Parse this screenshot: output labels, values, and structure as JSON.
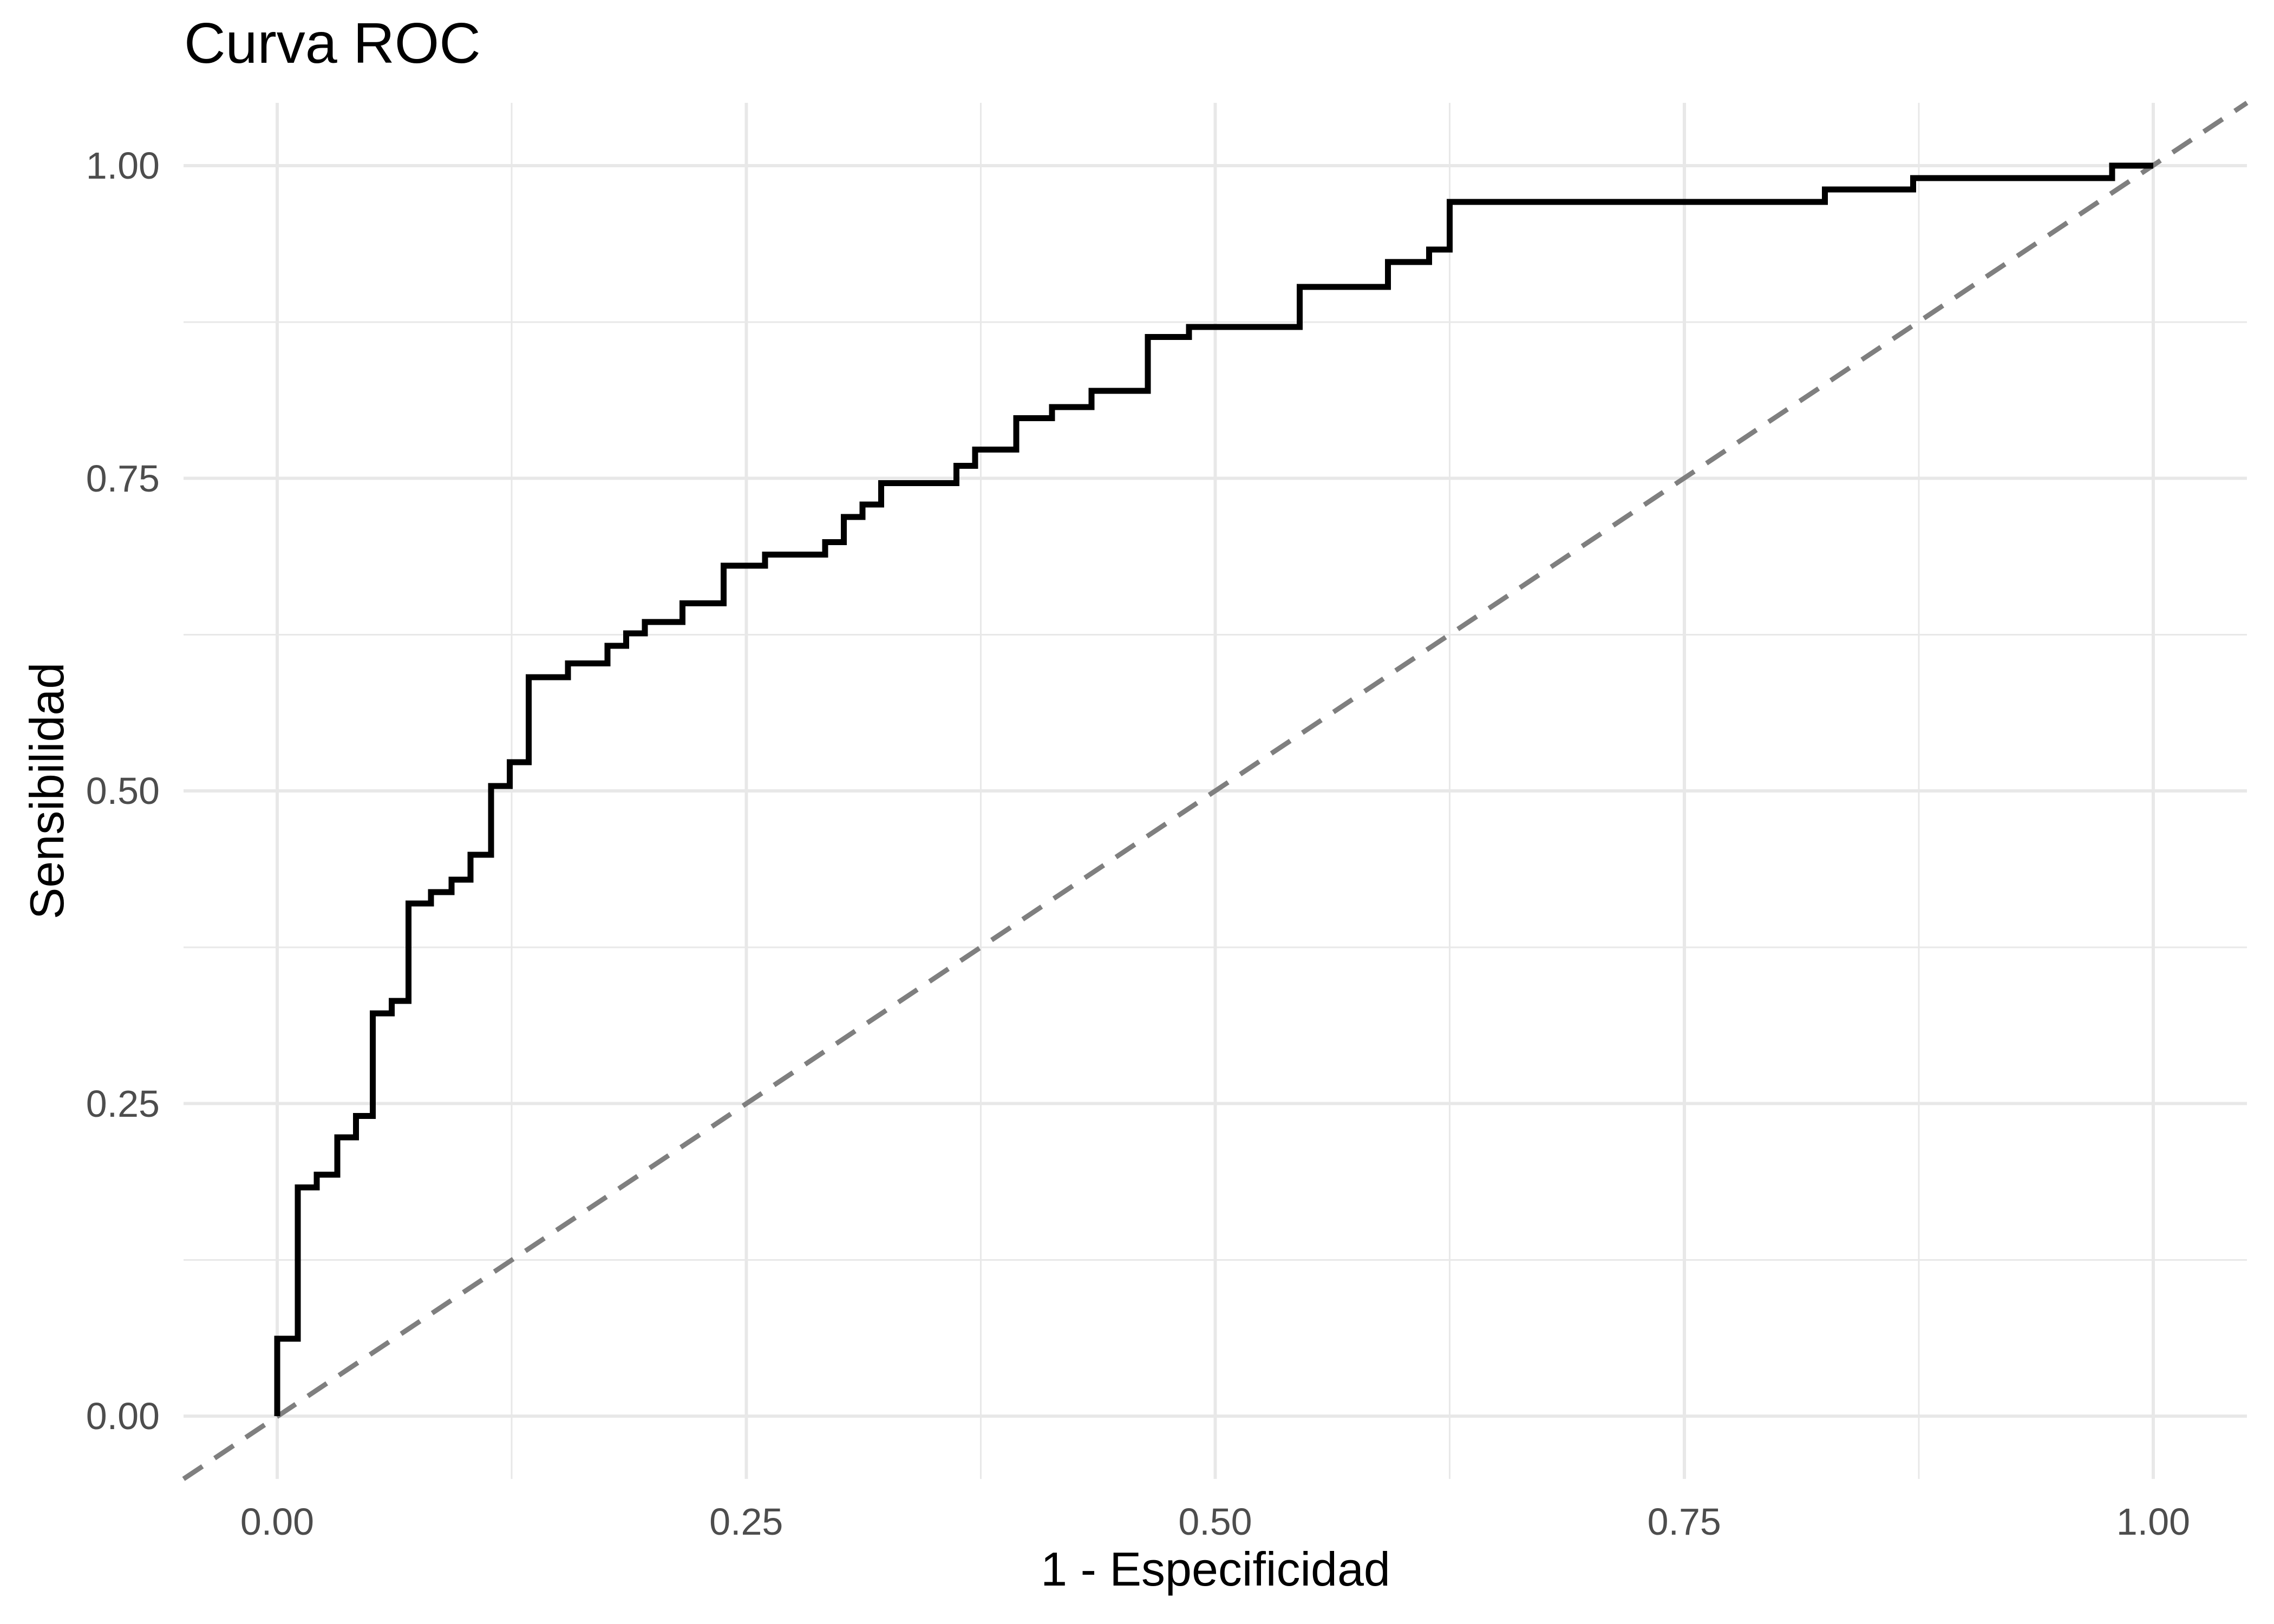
{
  "title": "Curva ROC",
  "axes": {
    "x": {
      "label": "1 - Especificidad",
      "tick_labels": [
        "0.00",
        "0.25",
        "0.50",
        "0.75",
        "1.00"
      ],
      "tick_values": [
        0,
        0.25,
        0.5,
        0.75,
        1
      ]
    },
    "y": {
      "label": "Sensibilidad",
      "tick_labels": [
        "0.00",
        "0.25",
        "0.50",
        "0.75",
        "1.00"
      ],
      "tick_values": [
        0,
        0.25,
        0.5,
        0.75,
        1
      ]
    }
  },
  "colors": {
    "background": "#ffffff",
    "roc_curve": "#000000",
    "reference_line": "#7f7f7f",
    "gridline": "#e8e8e8",
    "tick_text": "#4d4d4d",
    "title_text": "#000000"
  },
  "chart_data": {
    "type": "line",
    "subtype": "roc-step",
    "title": "Curva ROC",
    "xlabel": "1 - Especificidad",
    "ylabel": "Sensibilidad",
    "xlim": [
      0,
      1
    ],
    "ylim": [
      0,
      1
    ],
    "grid": {
      "major": [
        0,
        0.25,
        0.5,
        0.75,
        1
      ],
      "minor": [
        0.125,
        0.375,
        0.625,
        0.875
      ]
    },
    "legend": "none",
    "series": [
      {
        "name": "Curva ROC",
        "style": "step-solid",
        "color": "#000000",
        "points": [
          [
            0.0,
            0.0
          ],
          [
            0.0,
            0.062
          ],
          [
            0.011,
            0.062
          ],
          [
            0.011,
            0.183
          ],
          [
            0.021,
            0.183
          ],
          [
            0.021,
            0.193
          ],
          [
            0.032,
            0.193
          ],
          [
            0.032,
            0.223
          ],
          [
            0.042,
            0.223
          ],
          [
            0.042,
            0.24
          ],
          [
            0.051,
            0.24
          ],
          [
            0.051,
            0.322
          ],
          [
            0.061,
            0.322
          ],
          [
            0.061,
            0.332
          ],
          [
            0.07,
            0.332
          ],
          [
            0.07,
            0.41
          ],
          [
            0.082,
            0.41
          ],
          [
            0.082,
            0.419
          ],
          [
            0.093,
            0.419
          ],
          [
            0.093,
            0.429
          ],
          [
            0.103,
            0.429
          ],
          [
            0.103,
            0.449
          ],
          [
            0.114,
            0.449
          ],
          [
            0.114,
            0.504
          ],
          [
            0.124,
            0.504
          ],
          [
            0.124,
            0.523
          ],
          [
            0.134,
            0.523
          ],
          [
            0.134,
            0.591
          ],
          [
            0.155,
            0.591
          ],
          [
            0.155,
            0.602
          ],
          [
            0.176,
            0.602
          ],
          [
            0.176,
            0.616
          ],
          [
            0.186,
            0.616
          ],
          [
            0.186,
            0.626
          ],
          [
            0.196,
            0.626
          ],
          [
            0.196,
            0.635
          ],
          [
            0.216,
            0.635
          ],
          [
            0.216,
            0.65
          ],
          [
            0.238,
            0.65
          ],
          [
            0.238,
            0.68
          ],
          [
            0.26,
            0.68
          ],
          [
            0.26,
            0.689
          ],
          [
            0.292,
            0.689
          ],
          [
            0.292,
            0.699
          ],
          [
            0.302,
            0.699
          ],
          [
            0.302,
            0.719
          ],
          [
            0.312,
            0.719
          ],
          [
            0.312,
            0.729
          ],
          [
            0.322,
            0.729
          ],
          [
            0.322,
            0.746
          ],
          [
            0.362,
            0.746
          ],
          [
            0.362,
            0.76
          ],
          [
            0.372,
            0.76
          ],
          [
            0.372,
            0.773
          ],
          [
            0.394,
            0.773
          ],
          [
            0.394,
            0.798
          ],
          [
            0.413,
            0.798
          ],
          [
            0.413,
            0.807
          ],
          [
            0.434,
            0.807
          ],
          [
            0.434,
            0.82
          ],
          [
            0.464,
            0.82
          ],
          [
            0.464,
            0.863
          ],
          [
            0.486,
            0.863
          ],
          [
            0.486,
            0.871
          ],
          [
            0.545,
            0.871
          ],
          [
            0.545,
            0.903
          ],
          [
            0.592,
            0.903
          ],
          [
            0.592,
            0.923
          ],
          [
            0.614,
            0.923
          ],
          [
            0.614,
            0.933
          ],
          [
            0.625,
            0.933
          ],
          [
            0.625,
            0.971
          ],
          [
            0.825,
            0.971
          ],
          [
            0.825,
            0.981
          ],
          [
            0.872,
            0.981
          ],
          [
            0.872,
            0.99
          ],
          [
            0.978,
            0.99
          ],
          [
            0.978,
            1.0
          ],
          [
            1.0,
            1.0
          ]
        ]
      },
      {
        "name": "reference-diagonal",
        "style": "dashed",
        "color": "#7f7f7f",
        "points": [
          [
            0,
            0
          ],
          [
            1,
            1
          ]
        ]
      }
    ]
  }
}
